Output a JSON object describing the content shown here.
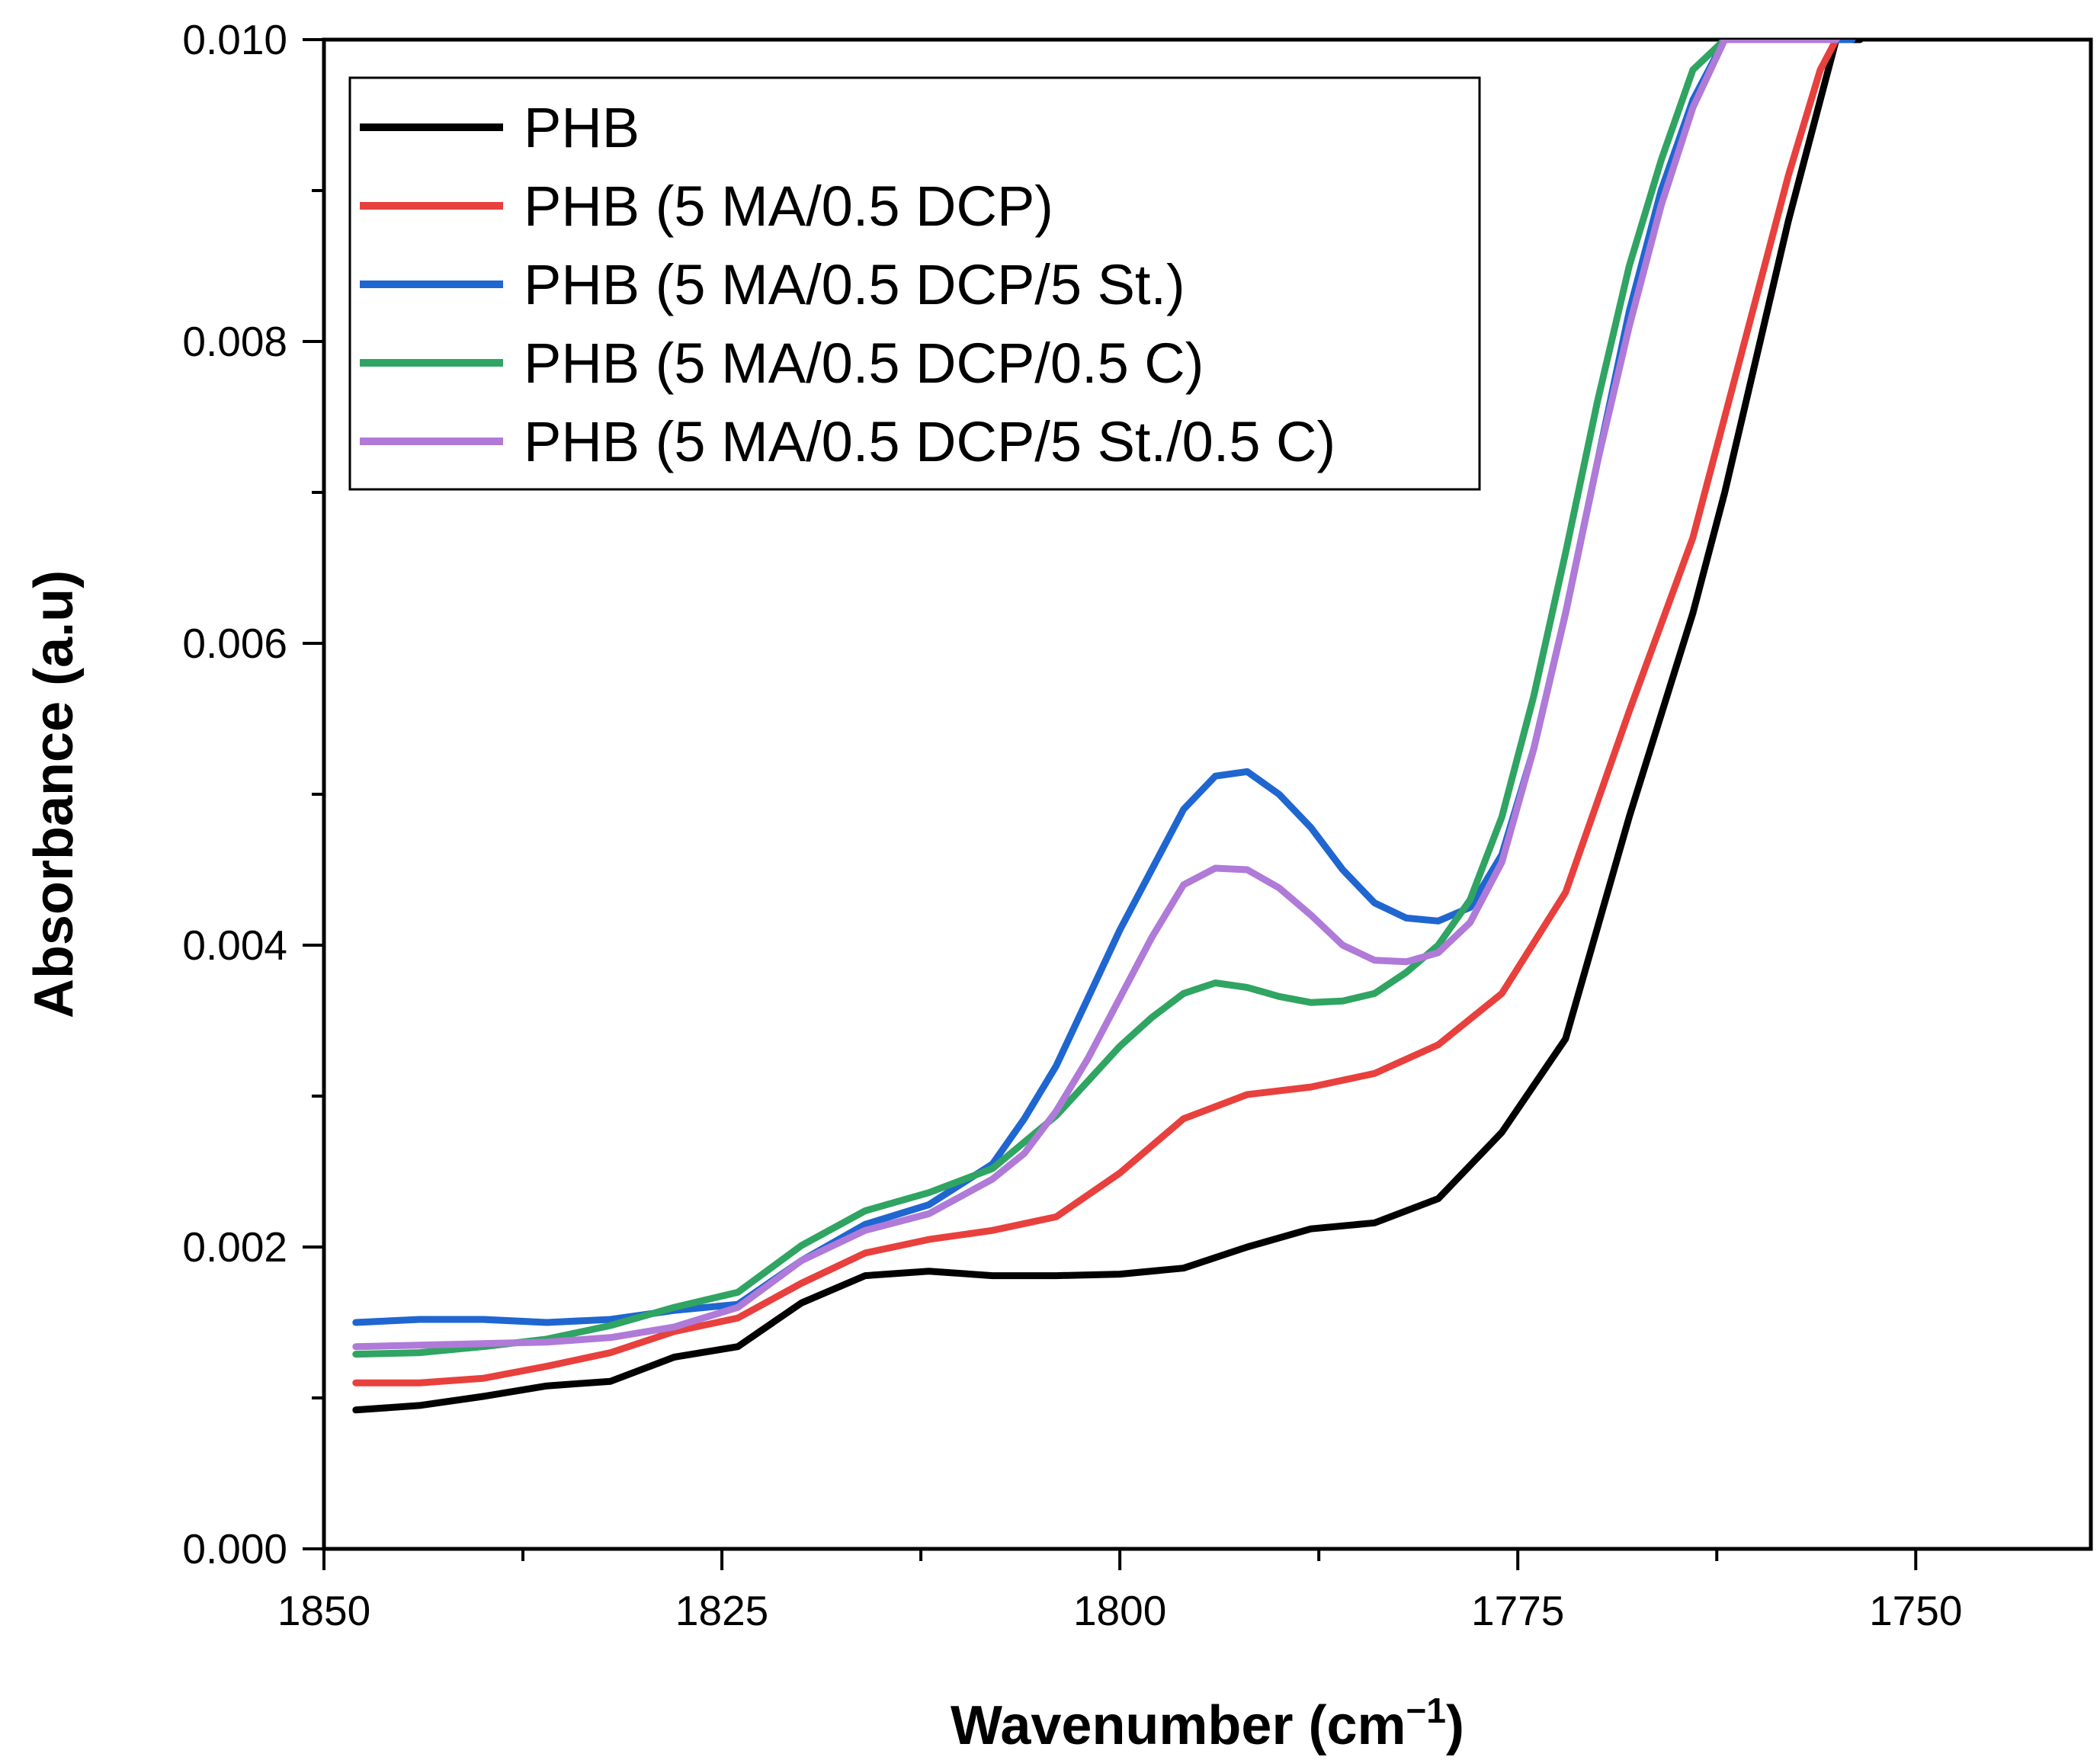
{
  "chart_data": {
    "type": "line",
    "title": "",
    "xlabel": "Wavenumber (cm",
    "xlabel_sup": "−1",
    "xlabel_end": ")",
    "ylabel": "Absorbance (a.u)",
    "xlim": [
      1850,
      1739
    ],
    "x_reversed": true,
    "ylim": [
      0,
      0.01
    ],
    "xticks": [
      1850,
      1825,
      1800,
      1775,
      1750
    ],
    "xtick_labels": [
      "1850",
      "1825",
      "1800",
      "1775",
      "1750"
    ],
    "yticks": [
      0,
      0.002,
      0.004,
      0.006,
      0.008,
      0.01
    ],
    "ytick_labels": [
      "0.000",
      "0.002",
      "0.004",
      "0.006",
      "0.008",
      "0.010"
    ],
    "grid": false,
    "legend_position": "top-left",
    "series": [
      {
        "name": "PHB",
        "color": "#000000",
        "x": [
          1848,
          1844,
          1840,
          1836,
          1832,
          1828,
          1824,
          1820,
          1816,
          1812,
          1808,
          1804,
          1800,
          1796,
          1792,
          1788,
          1784,
          1780,
          1776,
          1772,
          1768,
          1764,
          1762,
          1760,
          1758,
          1756,
          1755,
          1754,
          1753.5
        ],
        "y": [
          0.00092,
          0.00095,
          0.00101,
          0.00108,
          0.00111,
          0.00127,
          0.00134,
          0.00163,
          0.00181,
          0.00184,
          0.00181,
          0.00181,
          0.00182,
          0.00186,
          0.002,
          0.00212,
          0.00216,
          0.00232,
          0.00276,
          0.00338,
          0.00485,
          0.0062,
          0.007,
          0.0079,
          0.0088,
          0.0096,
          0.01,
          0.01,
          0.01
        ]
      },
      {
        "name": "PHB (5 MA/0.5 DCP)",
        "color": "#e8403d",
        "x": [
          1848,
          1844,
          1840,
          1836,
          1832,
          1828,
          1824,
          1820,
          1816,
          1812,
          1808,
          1804,
          1800,
          1796,
          1792,
          1788,
          1784,
          1780,
          1776,
          1772,
          1768,
          1764,
          1762,
          1760,
          1758,
          1756,
          1755,
          1754
        ],
        "y": [
          0.0011,
          0.0011,
          0.00113,
          0.00121,
          0.0013,
          0.00144,
          0.00153,
          0.00176,
          0.00196,
          0.00205,
          0.00211,
          0.0022,
          0.00249,
          0.00285,
          0.00301,
          0.00306,
          0.00315,
          0.00334,
          0.00368,
          0.00435,
          0.00555,
          0.0067,
          0.0075,
          0.0083,
          0.0091,
          0.0098,
          0.01,
          0.01
        ]
      },
      {
        "name": "PHB (5 MA/0.5 DCP/5 St.)",
        "color": "#1f66d1",
        "x": [
          1848,
          1844,
          1840,
          1836,
          1832,
          1828,
          1824,
          1820,
          1816,
          1812,
          1808,
          1806,
          1804,
          1802,
          1800,
          1798,
          1796,
          1794,
          1792,
          1790,
          1788,
          1786,
          1784,
          1782,
          1780,
          1778,
          1776,
          1774,
          1772,
          1770,
          1768,
          1766,
          1764,
          1762,
          1760,
          1758,
          1756,
          1755,
          1754
        ],
        "y": [
          0.0015,
          0.00152,
          0.00152,
          0.0015,
          0.00152,
          0.00158,
          0.00162,
          0.00191,
          0.00215,
          0.00228,
          0.00255,
          0.00285,
          0.0032,
          0.00365,
          0.0041,
          0.0045,
          0.0049,
          0.00512,
          0.00515,
          0.005,
          0.00478,
          0.0045,
          0.00428,
          0.00418,
          0.00416,
          0.00425,
          0.0046,
          0.0053,
          0.0062,
          0.0072,
          0.0082,
          0.009,
          0.0096,
          0.01,
          0.01,
          0.01,
          0.01,
          0.01,
          0.01
        ]
      },
      {
        "name": "PHB (5 MA/0.5 DCP/0.5 C)",
        "color": "#30a462",
        "x": [
          1848,
          1844,
          1840,
          1836,
          1832,
          1828,
          1824,
          1820,
          1816,
          1812,
          1808,
          1804,
          1802,
          1800,
          1798,
          1796,
          1794,
          1792,
          1790,
          1788,
          1786,
          1784,
          1782,
          1780,
          1778,
          1776,
          1774,
          1772,
          1770,
          1768,
          1766,
          1764,
          1762,
          1760,
          1758,
          1756,
          1755
        ],
        "y": [
          0.00129,
          0.0013,
          0.00134,
          0.00139,
          0.00148,
          0.0016,
          0.0017,
          0.00201,
          0.00224,
          0.00236,
          0.00252,
          0.00287,
          0.0031,
          0.00333,
          0.00352,
          0.00368,
          0.00375,
          0.00372,
          0.00366,
          0.00362,
          0.00363,
          0.00368,
          0.00382,
          0.004,
          0.0043,
          0.00485,
          0.00565,
          0.0066,
          0.0076,
          0.0085,
          0.0092,
          0.0098,
          0.01,
          0.01,
          0.01,
          0.01,
          0.01
        ]
      },
      {
        "name": "PHB (5 MA/0.5 DCP/5 St./0.5 C)",
        "color": "#b07ad8",
        "x": [
          1848,
          1844,
          1840,
          1836,
          1832,
          1828,
          1824,
          1820,
          1816,
          1812,
          1808,
          1806,
          1804,
          1802,
          1800,
          1798,
          1796,
          1794,
          1792,
          1790,
          1788,
          1786,
          1784,
          1782,
          1780,
          1778,
          1776,
          1774,
          1772,
          1770,
          1768,
          1766,
          1764,
          1762,
          1760,
          1758,
          1756,
          1755
        ],
        "y": [
          0.00134,
          0.00135,
          0.00136,
          0.00137,
          0.0014,
          0.00147,
          0.0016,
          0.00191,
          0.00211,
          0.00222,
          0.00245,
          0.00262,
          0.0029,
          0.00325,
          0.00365,
          0.00405,
          0.0044,
          0.00451,
          0.0045,
          0.00438,
          0.0042,
          0.004,
          0.0039,
          0.00389,
          0.00395,
          0.00415,
          0.00455,
          0.0053,
          0.0062,
          0.0072,
          0.0081,
          0.0089,
          0.00955,
          0.01,
          0.01,
          0.01,
          0.01,
          0.01
        ]
      }
    ]
  }
}
